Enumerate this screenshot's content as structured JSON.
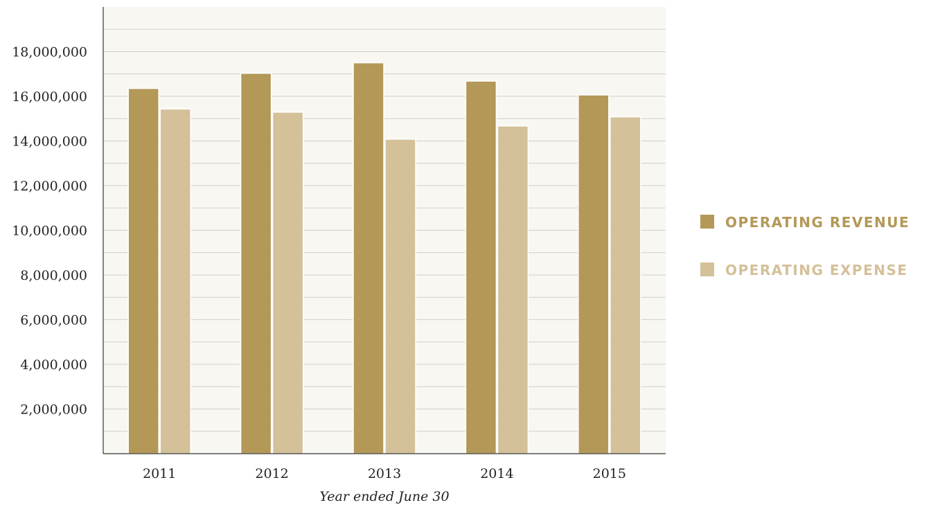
{
  "chart_data": {
    "type": "bar",
    "title": "",
    "xlabel": "Year ended June 30",
    "ylabel": "",
    "categories": [
      "2011",
      "2012",
      "2013",
      "2014",
      "2015"
    ],
    "series": [
      {
        "name": "OPERATING REVENUE",
        "values": [
          16350000,
          17030000,
          17500000,
          16680000,
          16060000
        ],
        "color": "#b39857"
      },
      {
        "name": "OPERATING EXPENSE",
        "values": [
          15430000,
          15290000,
          14080000,
          14670000,
          15080000
        ],
        "color": "#d4c099"
      }
    ],
    "ylim": [
      0,
      20000000
    ],
    "yticks": [
      2000000,
      4000000,
      6000000,
      8000000,
      10000000,
      12000000,
      14000000,
      16000000,
      18000000
    ],
    "ytick_labels": [
      "2,000,000",
      "4,000,000",
      "6,000,000",
      "8,000,000",
      "10,000,000",
      "12,000,000",
      "14,000,000",
      "16,000,000",
      "18,000,000"
    ],
    "grid": true,
    "legend_position": "right",
    "colors": {
      "plot_background": "#f9f7f2",
      "grid": "#cfcfcf",
      "axis": "#333333"
    }
  }
}
